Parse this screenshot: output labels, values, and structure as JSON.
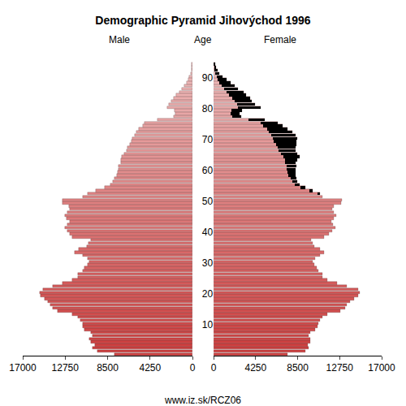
{
  "chart_data": {
    "type": "bar",
    "orientation": "horizontal",
    "title": "Demographic Pyramid Jihovýchod 1996",
    "ylabel": "Age",
    "footer": "www.iz.sk/RCZ06",
    "grid": false,
    "categories": [
      0,
      1,
      2,
      3,
      4,
      5,
      6,
      7,
      8,
      9,
      10,
      11,
      12,
      13,
      14,
      15,
      16,
      17,
      18,
      19,
      20,
      21,
      22,
      23,
      24,
      25,
      26,
      27,
      28,
      29,
      30,
      31,
      32,
      33,
      34,
      35,
      36,
      37,
      38,
      39,
      40,
      41,
      42,
      43,
      44,
      45,
      46,
      47,
      48,
      49,
      50,
      51,
      52,
      53,
      54,
      55,
      56,
      57,
      58,
      59,
      60,
      61,
      62,
      63,
      64,
      65,
      66,
      67,
      68,
      69,
      70,
      71,
      72,
      73,
      74,
      75,
      76,
      77,
      78,
      79,
      80,
      81,
      82,
      83,
      84,
      85,
      86,
      87,
      88,
      89,
      90,
      91,
      92,
      93,
      94
    ],
    "series": [
      {
        "name": "Male",
        "color": "#cc3c3c",
        "values": [
          7800,
          9500,
          10000,
          9800,
          10200,
          10300,
          10000,
          10200,
          10800,
          11000,
          11000,
          11200,
          11500,
          12000,
          13500,
          14000,
          14200,
          14500,
          14800,
          15200,
          15300,
          15000,
          14000,
          13000,
          12000,
          11500,
          11500,
          11000,
          10800,
          10500,
          10300,
          10500,
          11000,
          11800,
          11400,
          10600,
          10400,
          10200,
          12000,
          12300,
          12500,
          12800,
          12500,
          12300,
          12600,
          12800,
          12500,
          12300,
          12400,
          13000,
          13000,
          11000,
          10500,
          9700,
          8800,
          8200,
          8000,
          7800,
          7600,
          7500,
          7400,
          7400,
          7200,
          7200,
          7100,
          6800,
          6600,
          6500,
          6300,
          6100,
          6000,
          5800,
          5600,
          5400,
          5000,
          4800,
          3500,
          1900,
          1700,
          1800,
          2500,
          2400,
          2100,
          1900,
          1600,
          1300,
          1100,
          800,
          600,
          450,
          300,
          200,
          120,
          80,
          50
        ]
      },
      {
        "name": "Female",
        "color": "#cc3c3c",
        "values": [
          7500,
          9300,
          9600,
          9500,
          9800,
          9800,
          9600,
          9800,
          10300,
          10500,
          10600,
          10800,
          11000,
          11500,
          12800,
          13300,
          13500,
          13800,
          14200,
          14600,
          14800,
          14600,
          13500,
          12500,
          11500,
          11000,
          11000,
          10600,
          10400,
          10200,
          10000,
          10300,
          10800,
          11200,
          10800,
          10200,
          10000,
          9900,
          11200,
          11700,
          12000,
          12300,
          12100,
          11900,
          12200,
          12400,
          12200,
          12000,
          12200,
          12900,
          13000,
          11000,
          10800,
          10000,
          9300,
          8700,
          8500,
          8400,
          8300,
          8300,
          8300,
          8400,
          8300,
          8500,
          8700,
          8500,
          8300,
          8300,
          8400,
          8400,
          8500,
          8300,
          8000,
          7500,
          7000,
          6500,
          5200,
          2800,
          2600,
          2900,
          4800,
          4200,
          3900,
          3700,
          3300,
          3000,
          2500,
          2100,
          1700,
          1300,
          900,
          600,
          400,
          250,
          150
        ]
      }
    ],
    "xlim": [
      0,
      17000
    ],
    "xticks": [
      0,
      4250,
      8500,
      12750,
      17000
    ],
    "ylim": [
      0,
      100
    ],
    "yticks": [
      10,
      20,
      30,
      40,
      50,
      60,
      70,
      80,
      90
    ]
  }
}
